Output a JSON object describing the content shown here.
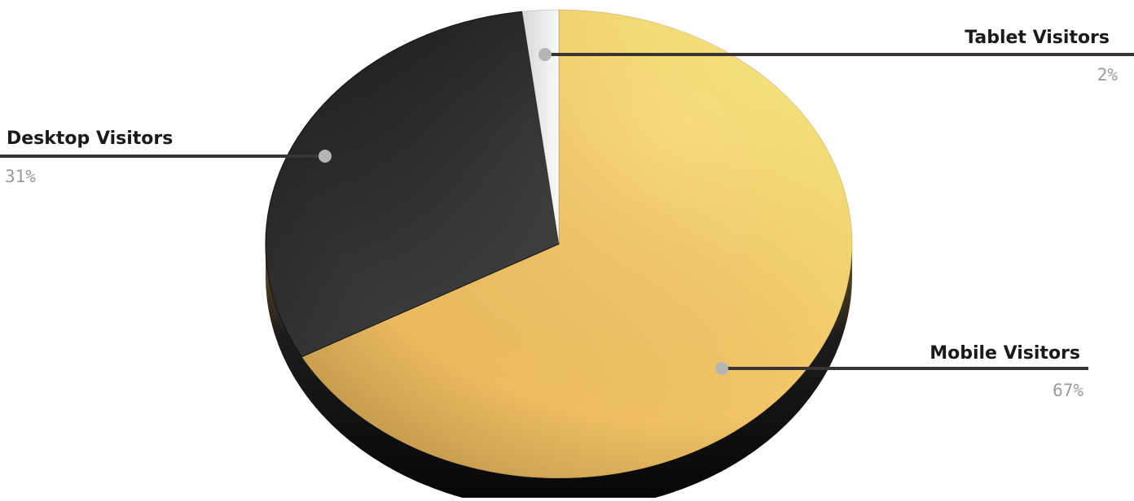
{
  "chart_data": {
    "type": "pie",
    "title": "",
    "slices": [
      {
        "label": "Mobile Visitors",
        "value": 67,
        "display": "67%",
        "color": "#f2c067"
      },
      {
        "label": "Desktop Visitors",
        "value": 31,
        "display": "31%",
        "color": "#2b2b2b"
      },
      {
        "label": "Tablet Visitors",
        "value": 2,
        "display": "2%",
        "color": "#f4f4f4"
      }
    ],
    "style": "3d",
    "legend": "callouts"
  },
  "colors": {
    "leader_line": "#3a3333",
    "marker_dot": "#b5b5b5",
    "label_text": "#1a1a1a",
    "percent_text": "#9a9a9a"
  }
}
